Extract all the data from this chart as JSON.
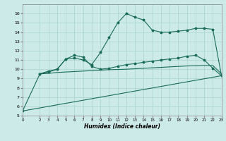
{
  "xlabel": "Humidex (Indice chaleur)",
  "xlim": [
    0,
    23
  ],
  "ylim": [
    5,
    17
  ],
  "yticks": [
    5,
    6,
    7,
    8,
    9,
    10,
    11,
    12,
    13,
    14,
    15,
    16
  ],
  "xticks": [
    0,
    2,
    3,
    4,
    5,
    6,
    7,
    8,
    9,
    10,
    11,
    12,
    13,
    14,
    15,
    16,
    17,
    18,
    19,
    20,
    21,
    22,
    23
  ],
  "bg_color": "#cceae8",
  "grid_color": "#aad4d0",
  "line_color": "#1a6b5a",
  "line1_x": [
    0,
    2,
    3,
    4,
    5,
    6,
    7,
    8,
    9,
    10,
    11,
    12,
    13,
    14,
    15,
    16,
    17,
    18,
    19,
    20,
    21,
    22,
    23
  ],
  "line1_y": [
    5.5,
    9.5,
    9.8,
    10.0,
    11.1,
    11.2,
    11.0,
    10.5,
    11.8,
    13.4,
    15.0,
    16.0,
    15.6,
    15.3,
    14.2,
    14.0,
    14.0,
    14.1,
    14.2,
    14.4,
    14.4,
    14.3,
    9.3
  ],
  "line2_x": [
    2,
    3,
    4,
    5,
    6,
    7,
    8,
    9,
    10,
    11,
    12,
    13,
    14,
    15,
    16,
    17,
    18,
    19,
    20,
    21,
    22,
    23
  ],
  "line2_y": [
    9.5,
    9.7,
    10.0,
    11.1,
    11.5,
    11.3,
    10.3,
    10.0,
    10.1,
    10.3,
    10.5,
    10.6,
    10.75,
    10.85,
    11.0,
    11.1,
    11.2,
    11.4,
    11.5,
    11.0,
    10.1,
    9.3
  ],
  "line3_x": [
    2,
    3,
    4,
    5,
    6,
    7,
    8,
    9,
    10,
    11,
    12,
    13,
    14,
    15,
    16,
    17,
    18,
    19,
    20,
    21,
    22,
    23
  ],
  "line3_y": [
    9.5,
    9.55,
    9.65,
    9.7,
    9.75,
    9.8,
    9.85,
    9.9,
    9.95,
    9.97,
    10.0,
    10.05,
    10.1,
    10.15,
    10.2,
    10.25,
    10.3,
    10.35,
    10.38,
    10.4,
    10.4,
    9.5
  ],
  "line4_x": [
    0,
    23
  ],
  "line4_y": [
    5.5,
    9.3
  ],
  "marker_size": 2.5,
  "line_width": 0.8
}
